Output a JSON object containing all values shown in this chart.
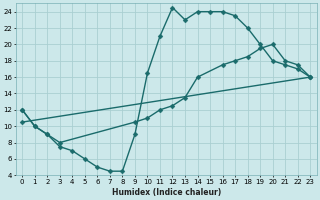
{
  "xlabel": "Humidex (Indice chaleur)",
  "bg_color": "#cce8ea",
  "grid_color": "#aacfd2",
  "line_color": "#1a6b6b",
  "xlim": [
    -0.5,
    23.5
  ],
  "ylim": [
    4,
    25
  ],
  "xticks": [
    0,
    1,
    2,
    3,
    4,
    5,
    6,
    7,
    8,
    9,
    10,
    11,
    12,
    13,
    14,
    15,
    16,
    17,
    18,
    19,
    20,
    21,
    22,
    23
  ],
  "yticks": [
    4,
    6,
    8,
    10,
    12,
    14,
    16,
    18,
    20,
    22,
    24
  ],
  "line1_x": [
    0,
    1,
    2,
    3,
    4,
    5,
    6,
    7,
    8,
    9,
    10,
    11,
    12,
    13,
    14,
    15,
    16,
    17,
    18,
    19,
    20,
    21,
    22,
    23
  ],
  "line1_y": [
    12,
    10,
    9,
    7.5,
    7,
    6,
    5,
    4.5,
    4.5,
    9,
    16.5,
    21,
    24.5,
    23,
    24,
    24,
    24,
    23.5,
    22,
    20,
    18,
    17.5,
    17,
    16
  ],
  "line2_x": [
    0,
    1,
    2,
    3,
    9,
    10,
    11,
    12,
    13,
    14,
    16,
    17,
    18,
    19,
    20,
    21,
    22,
    23
  ],
  "line2_y": [
    12,
    10,
    9,
    8,
    10.5,
    11,
    12,
    12.5,
    13.5,
    16,
    17.5,
    18,
    18.5,
    19.5,
    20,
    18,
    17.5,
    16
  ],
  "line3_x": [
    0,
    23
  ],
  "line3_y": [
    10.5,
    16
  ],
  "marker_size": 2.5,
  "linewidth": 1.0
}
